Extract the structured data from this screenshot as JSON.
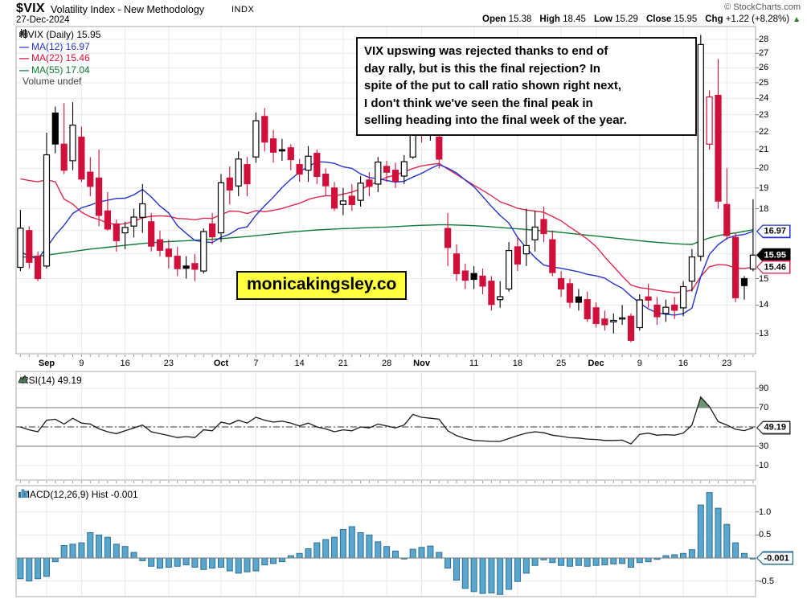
{
  "header": {
    "symbol": "$VIX",
    "title": "Volatility Index - New Methodology",
    "exchange": "INDX",
    "date": "27-Dec-2024",
    "copyright": "© StockCharts.com",
    "quote_parts": [
      {
        "label": "Open",
        "value": "15.38"
      },
      {
        "label": "High",
        "value": "18.45"
      },
      {
        "label": "Low",
        "value": "15.29"
      },
      {
        "label": "Close",
        "value": "15.95"
      },
      {
        "label": "Chg",
        "value": "+1.22 (+8.28%)"
      }
    ],
    "direction": "up"
  },
  "legend": {
    "series": "$VIX (Daily) 15.95",
    "ma12": "MA(12) 16.97",
    "ma22": "MA(22) 15.46",
    "ma55": "MA(55) 17.04",
    "volume": "Volume undef"
  },
  "annotation": {
    "lines": [
      "VIX upswing was rejected thanks to end of",
      "day rally, but is this the final rejection? In",
      "spite of the put to call ratio shown right next,",
      "I don't think we've seen the final peak in",
      "selling heading into the final week of the year."
    ]
  },
  "watermark": "monicakingsley.co",
  "colors": {
    "candle_red": "#d0103a",
    "candle_black": "#000000",
    "ma12_blue": "#2433cc",
    "ma22_red": "#dc2a4e",
    "ma55_green": "#0f7a34",
    "macd_fill": "#5aa7cd",
    "macd_stroke": "#2e6f96",
    "rsi_line": "#1a1a1a",
    "rsi_overbought_fill": "#6f9270",
    "grid": "#e9e9e9",
    "frame": "#aaaaaa",
    "up_green": "#1d7a1d",
    "watermark_bg": "#ffff40"
  },
  "price_labels": [
    {
      "text": "16.97",
      "value": 16.97,
      "style": "blue"
    },
    {
      "text": "15.95",
      "value": 15.95,
      "style": "black"
    },
    {
      "text": "15.46",
      "value": 15.46,
      "style": "red"
    }
  ],
  "rsi_panel": {
    "label": "RSI(14) 49.19",
    "value_label": "49.19",
    "value": 49.19
  },
  "macd_panel": {
    "label": "MACD(12,26,9) Hist -0.001",
    "value_label": "-0.001",
    "value": -0.001
  },
  "chart_data": {
    "type": "candlestick",
    "title": "$VIX (Daily) 15.95",
    "y_scale": "log",
    "main_y_ticks": [
      28,
      27,
      26,
      25,
      24,
      23,
      22,
      21,
      20,
      19,
      18,
      15,
      14,
      13
    ],
    "main_range": [
      12.33,
      28.95
    ],
    "first_prev_close": 15.43,
    "ohlc": [
      [
        15.45,
        17.95,
        15.3,
        17.11
      ],
      [
        17.0,
        17.2,
        15.4,
        15.65
      ],
      [
        15.9,
        16.1,
        14.9,
        15.0
      ],
      [
        15.5,
        21.95,
        15.4,
        20.72
      ],
      [
        23.1,
        23.5,
        20.8,
        21.31
      ],
      [
        21.3,
        23.7,
        19.7,
        19.9
      ],
      [
        20.4,
        23.76,
        19.9,
        22.38
      ],
      [
        21.7,
        22.3,
        19.3,
        19.45
      ],
      [
        19.8,
        20.6,
        18.6,
        19.08
      ],
      [
        19.5,
        21.0,
        17.2,
        17.69
      ],
      [
        17.9,
        18.8,
        17.0,
        17.07
      ],
      [
        17.3,
        17.5,
        16.1,
        16.56
      ],
      [
        16.9,
        17.4,
        16.2,
        17.14
      ],
      [
        17.2,
        18.0,
        16.7,
        17.61
      ],
      [
        17.6,
        19.2,
        16.9,
        18.23
      ],
      [
        17.4,
        17.8,
        16.1,
        16.33
      ],
      [
        16.6,
        17.0,
        15.9,
        16.15
      ],
      [
        16.2,
        16.6,
        15.4,
        15.89
      ],
      [
        15.9,
        16.3,
        15.1,
        15.39
      ],
      [
        15.5,
        15.9,
        15.0,
        15.41
      ],
      [
        15.6,
        16.0,
        14.9,
        15.37
      ],
      [
        15.3,
        17.1,
        15.2,
        16.96
      ],
      [
        17.3,
        17.8,
        16.4,
        16.73
      ],
      [
        16.9,
        19.7,
        16.5,
        19.26
      ],
      [
        19.5,
        20.1,
        18.2,
        18.9
      ],
      [
        19.1,
        20.9,
        18.6,
        20.49
      ],
      [
        20.2,
        20.6,
        18.6,
        19.21
      ],
      [
        20.6,
        23.14,
        20.3,
        22.64
      ],
      [
        22.9,
        23.4,
        20.9,
        21.42
      ],
      [
        21.6,
        22.1,
        20.3,
        20.86
      ],
      [
        21.0,
        21.6,
        20.4,
        20.93
      ],
      [
        21.1,
        21.3,
        19.9,
        20.46
      ],
      [
        20.2,
        20.5,
        19.3,
        19.7
      ],
      [
        19.9,
        21.2,
        19.3,
        20.64
      ],
      [
        20.8,
        21.0,
        19.2,
        19.58
      ],
      [
        19.7,
        20.0,
        18.6,
        19.11
      ],
      [
        19.0,
        19.3,
        17.9,
        18.03
      ],
      [
        18.2,
        19.0,
        17.7,
        18.37
      ],
      [
        18.6,
        19.2,
        17.9,
        18.2
      ],
      [
        18.4,
        19.6,
        18.1,
        19.24
      ],
      [
        19.4,
        19.8,
        18.6,
        19.08
      ],
      [
        19.2,
        20.6,
        18.8,
        20.33
      ],
      [
        20.1,
        20.4,
        19.3,
        19.8
      ],
      [
        19.9,
        20.3,
        19.0,
        19.34
      ],
      [
        19.6,
        20.7,
        19.2,
        20.35
      ],
      [
        20.6,
        23.4,
        20.5,
        23.16
      ],
      [
        23.0,
        23.3,
        21.4,
        21.88
      ],
      [
        22.5,
        23.1,
        21.5,
        21.98
      ],
      [
        21.7,
        22.2,
        20.0,
        20.49
      ],
      [
        17.1,
        17.8,
        15.5,
        16.27
      ],
      [
        16.0,
        16.4,
        14.9,
        15.2
      ],
      [
        15.3,
        15.6,
        14.6,
        14.94
      ],
      [
        15.2,
        15.5,
        14.6,
        14.97
      ],
      [
        15.1,
        15.4,
        14.4,
        14.71
      ],
      [
        14.9,
        15.1,
        13.8,
        14.02
      ],
      [
        14.2,
        14.9,
        13.9,
        14.31
      ],
      [
        14.6,
        16.5,
        14.5,
        16.14
      ],
      [
        16.3,
        16.7,
        15.3,
        15.58
      ],
      [
        16.0,
        18.0,
        15.5,
        16.35
      ],
      [
        16.6,
        17.9,
        16.1,
        17.16
      ],
      [
        17.5,
        18.1,
        16.5,
        16.87
      ],
      [
        16.6,
        17.0,
        15.1,
        15.24
      ],
      [
        15.0,
        15.3,
        14.3,
        14.6
      ],
      [
        14.8,
        15.0,
        13.9,
        14.1
      ],
      [
        14.3,
        14.6,
        13.8,
        14.1
      ],
      [
        14.2,
        14.5,
        13.4,
        13.51
      ],
      [
        13.9,
        14.1,
        13.2,
        13.34
      ],
      [
        13.5,
        13.8,
        13.1,
        13.3
      ],
      [
        13.4,
        13.7,
        13.0,
        13.45
      ],
      [
        13.5,
        14.0,
        13.3,
        13.54
      ],
      [
        13.6,
        13.7,
        12.7,
        12.77
      ],
      [
        13.2,
        14.4,
        13.1,
        14.19
      ],
      [
        14.3,
        14.8,
        13.9,
        14.18
      ],
      [
        14.0,
        14.3,
        13.3,
        13.58
      ],
      [
        13.7,
        14.2,
        13.4,
        13.92
      ],
      [
        14.0,
        14.3,
        13.5,
        13.81
      ],
      [
        13.9,
        14.9,
        13.6,
        14.69
      ],
      [
        14.9,
        16.2,
        14.5,
        15.87
      ],
      [
        15.9,
        28.32,
        15.7,
        27.62
      ],
      [
        21.3,
        24.5,
        21.0,
        24.09
      ],
      [
        24.2,
        26.6,
        18.0,
        18.36
      ],
      [
        18.2,
        20.0,
        16.6,
        16.78
      ],
      [
        16.7,
        16.9,
        14.1,
        14.27
      ],
      [
        15.0,
        15.1,
        14.2,
        14.73
      ],
      [
        15.38,
        18.45,
        15.29,
        15.95
      ]
    ],
    "ma12": [
      16.1,
      15.9,
      15.8,
      16.26,
      16.8,
      17.24,
      17.78,
      18.04,
      18.17,
      18.32,
      18.4,
      18.49,
      18.5,
      18.66,
      18.93,
      18.56,
      18.13,
      17.8,
      17.22,
      16.88,
      16.57,
      16.51,
      16.48,
      16.71,
      16.85,
      17.09,
      17.17,
      17.7,
      18.14,
      18.55,
      19.02,
      19.44,
      19.8,
      20.1,
      20.34,
      20.33,
      20.26,
      20.08,
      20.0,
      19.71,
      19.52,
      19.47,
      19.38,
      19.29,
      19.34,
      19.55,
      19.74,
      19.98,
      20.19,
      20.01,
      19.76,
      19.4,
      19.06,
      18.59,
      18.11,
      17.69,
      17.34,
      16.71,
      16.25,
      15.85,
      15.54,
      15.46,
      15.41,
      15.34,
      15.27,
      15.17,
      15.11,
      15.02,
      14.8,
      14.63,
      14.33,
      14.08,
      13.86,
      13.72,
      13.67,
      13.64,
      13.69,
      13.89,
      15.08,
      15.98,
      16.39,
      16.66,
      16.78,
      16.83,
      16.97
    ],
    "ma22": [
      19.46,
      19.37,
      19.31,
      19.41,
      19.31,
      18.46,
      18.22,
      17.84,
      17.62,
      17.5,
      17.34,
      17.27,
      17.31,
      17.42,
      17.58,
      17.65,
      17.67,
      17.65,
      17.55,
      17.53,
      17.49,
      17.56,
      17.55,
      17.71,
      17.89,
      17.88,
      17.78,
      17.91,
      17.86,
      17.93,
      18.01,
      18.14,
      18.26,
      18.44,
      18.55,
      18.62,
      18.61,
      18.7,
      18.8,
      18.95,
      19.12,
      19.34,
      19.54,
      19.65,
      19.82,
      19.99,
      20.13,
      20.2,
      20.25,
      19.96,
      19.68,
      19.41,
      19.14,
      18.88,
      18.62,
      18.33,
      18.18,
      18.02,
      17.94,
      17.89,
      17.83,
      17.64,
      17.44,
      17.16,
      16.9,
      16.63,
      16.31,
      15.87,
      15.48,
      15.1,
      14.75,
      14.65,
      14.61,
      14.55,
      14.5,
      14.46,
      14.49,
      14.56,
      15.08,
      15.47,
      15.56,
      15.54,
      15.42,
      15.4,
      15.46
    ],
    "ma55": [
      15.85,
      15.88,
      15.9,
      15.95,
      16.0,
      16.05,
      16.1,
      16.15,
      16.2,
      16.24,
      16.28,
      16.32,
      16.36,
      16.4,
      16.44,
      16.47,
      16.5,
      16.52,
      16.54,
      16.56,
      16.58,
      16.6,
      16.62,
      16.65,
      16.68,
      16.71,
      16.74,
      16.78,
      16.82,
      16.86,
      16.9,
      16.94,
      16.97,
      17.0,
      17.03,
      17.05,
      17.07,
      17.09,
      17.1,
      17.12,
      17.13,
      17.15,
      17.16,
      17.18,
      17.2,
      17.22,
      17.24,
      17.25,
      17.26,
      17.26,
      17.25,
      17.24,
      17.22,
      17.2,
      17.17,
      17.14,
      17.11,
      17.08,
      17.05,
      17.02,
      16.99,
      16.96,
      16.92,
      16.88,
      16.84,
      16.8,
      16.76,
      16.72,
      16.68,
      16.64,
      16.6,
      16.56,
      16.52,
      16.49,
      16.46,
      16.43,
      16.41,
      16.4,
      16.55,
      16.68,
      16.78,
      16.85,
      16.9,
      16.97,
      17.04
    ],
    "rsi": {
      "label": "RSI(14) 49.19",
      "y_ticks": [
        90,
        70,
        30,
        10
      ],
      "overbought": 70,
      "oversold": 30,
      "midline": 50,
      "values": [
        50,
        47,
        45,
        57,
        58,
        53,
        59,
        54,
        53,
        48,
        45,
        43,
        46,
        49,
        52,
        45,
        43,
        41,
        39,
        40,
        39,
        47,
        46,
        55,
        53,
        57,
        54,
        60,
        57,
        55,
        56,
        54,
        51,
        54,
        50,
        48,
        45,
        47,
        46,
        50,
        49,
        53,
        51,
        49,
        52,
        63,
        60,
        59,
        58,
        46,
        41,
        38,
        36,
        35.5,
        35,
        35,
        38,
        41,
        43.6,
        45,
        44,
        41.4,
        40.3,
        38.8,
        38.5,
        37.4,
        37,
        36,
        36,
        36.3,
        32.4,
        42.3,
        43.6,
        41.4,
        42,
        41.5,
        43.6,
        52,
        81,
        71,
        55.6,
        52,
        47.6,
        46.2,
        49.19
      ]
    },
    "macd_hist": {
      "label": "MACD(12,26,9) Hist -0.001",
      "y_ticks": [
        {
          "label": "1.0",
          "v": 1.0
        },
        {
          "label": "0.5",
          "v": 0.5
        },
        {
          "label": "-0.5",
          "v": -0.5
        }
      ],
      "values": [
        -0.45,
        -0.5,
        -0.45,
        -0.4,
        -0.08,
        0.27,
        0.3,
        0.33,
        0.55,
        0.5,
        0.45,
        0.3,
        0.25,
        0.12,
        -0.06,
        -0.18,
        -0.22,
        -0.2,
        -0.18,
        -0.15,
        -0.2,
        -0.25,
        -0.22,
        -0.2,
        -0.28,
        -0.33,
        -0.3,
        -0.28,
        -0.15,
        -0.12,
        -0.08,
        0.05,
        0.1,
        0.2,
        0.33,
        0.4,
        0.45,
        0.62,
        0.68,
        0.55,
        0.5,
        0.35,
        0.25,
        0.15,
        -0.02,
        0.19,
        0.23,
        0.26,
        0.12,
        -0.22,
        -0.48,
        -0.66,
        -0.73,
        -0.77,
        -0.76,
        -0.79,
        -0.68,
        -0.51,
        -0.33,
        -0.16,
        -0.04,
        -0.1,
        -0.16,
        -0.18,
        -0.16,
        -0.18,
        -0.16,
        -0.15,
        -0.13,
        -0.12,
        -0.2,
        -0.1,
        -0.08,
        -0.03,
        0.05,
        0.07,
        0.1,
        0.18,
        1.15,
        1.42,
        1.08,
        0.73,
        0.33,
        0.1,
        -0.001
      ]
    },
    "x_ticks": [
      {
        "label": "Sep",
        "i": 3,
        "bold": true
      },
      {
        "label": "9",
        "i": 7,
        "bold": false
      },
      {
        "label": "16",
        "i": 12,
        "bold": false
      },
      {
        "label": "23",
        "i": 17,
        "bold": false
      },
      {
        "label": "Oct",
        "i": 23,
        "bold": true
      },
      {
        "label": "7",
        "i": 27,
        "bold": false
      },
      {
        "label": "14",
        "i": 32,
        "bold": false
      },
      {
        "label": "21",
        "i": 37,
        "bold": false
      },
      {
        "label": "28",
        "i": 42,
        "bold": false
      },
      {
        "label": "Nov",
        "i": 46,
        "bold": true
      },
      {
        "label": "11",
        "i": 52,
        "bold": false
      },
      {
        "label": "18",
        "i": 57,
        "bold": false
      },
      {
        "label": "25",
        "i": 62,
        "bold": false
      },
      {
        "label": "Dec",
        "i": 66,
        "bold": true
      },
      {
        "label": "9",
        "i": 71,
        "bold": false
      },
      {
        "label": "16",
        "i": 76,
        "bold": false
      },
      {
        "label": "23",
        "i": 81,
        "bold": false
      }
    ]
  }
}
